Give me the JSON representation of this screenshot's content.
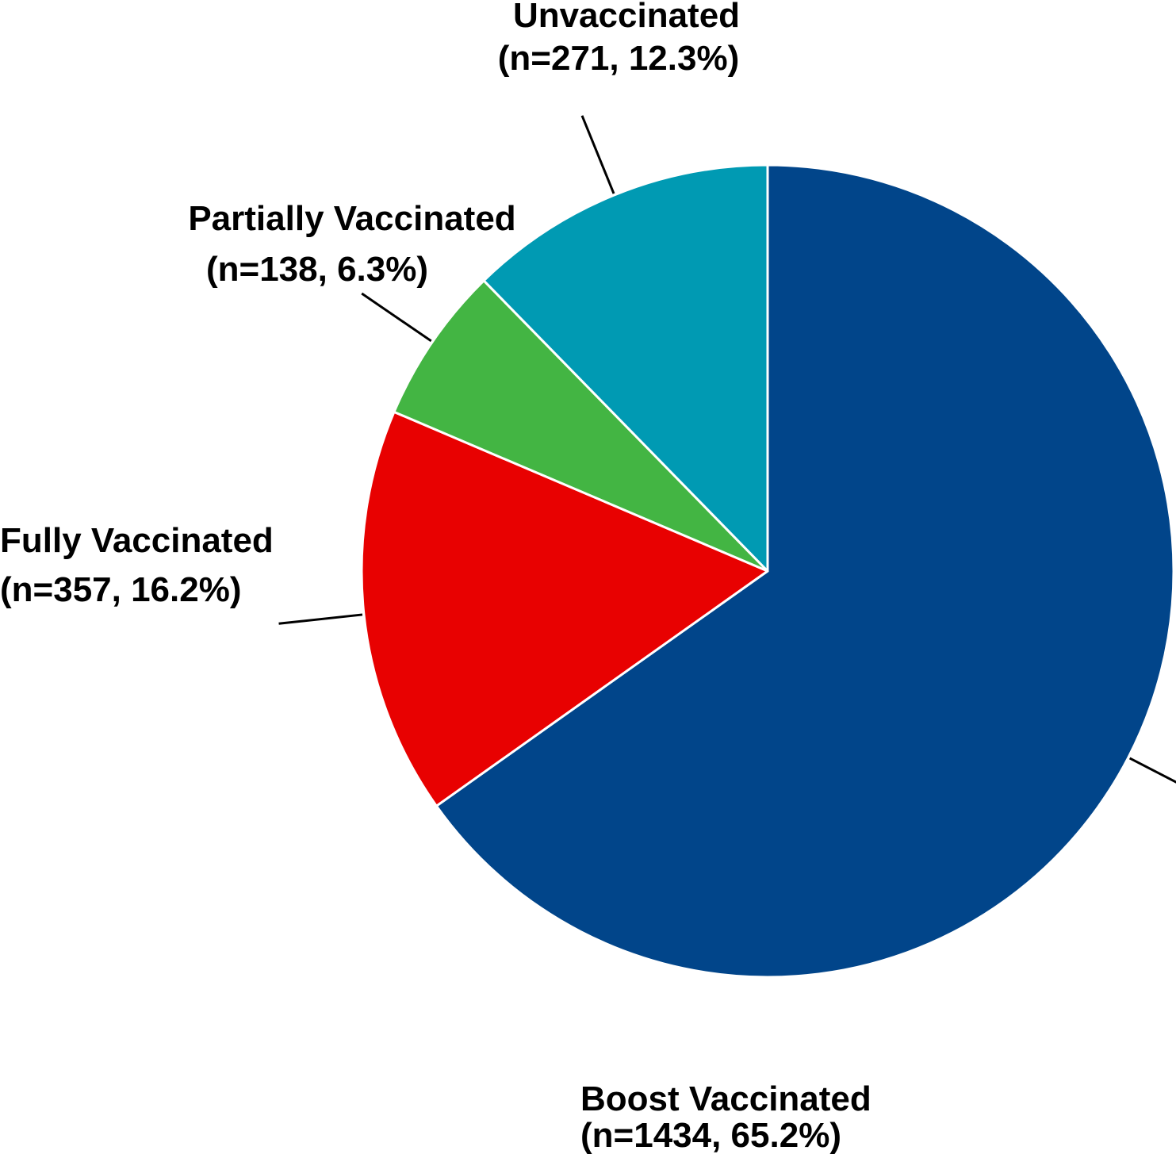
{
  "chart_data": {
    "type": "pie",
    "start": "12 o'clock",
    "direction": "clockwise",
    "slices": [
      {
        "label": "Boost Vaccinated",
        "detail": "(n=1434, 65.2%)",
        "n": 1434,
        "percent": 65.2,
        "color": "#01458A"
      },
      {
        "label": "Fully Vaccinated",
        "detail": "(n=357, 16.2%)",
        "n": 357,
        "percent": 16.2,
        "color": "#E80101"
      },
      {
        "label": "Partially Vaccinated",
        "detail": "(n=138, 6.3%)",
        "n": 138,
        "percent": 6.3,
        "color": "#43B543"
      },
      {
        "label": "Unvaccinated",
        "detail": "(n=271, 12.3%)",
        "n": 271,
        "percent": 12.3,
        "color": "#009AB3"
      }
    ],
    "slice_border_color": "#FFFFFF",
    "leader_line_color": "#000000",
    "legend": "none"
  }
}
